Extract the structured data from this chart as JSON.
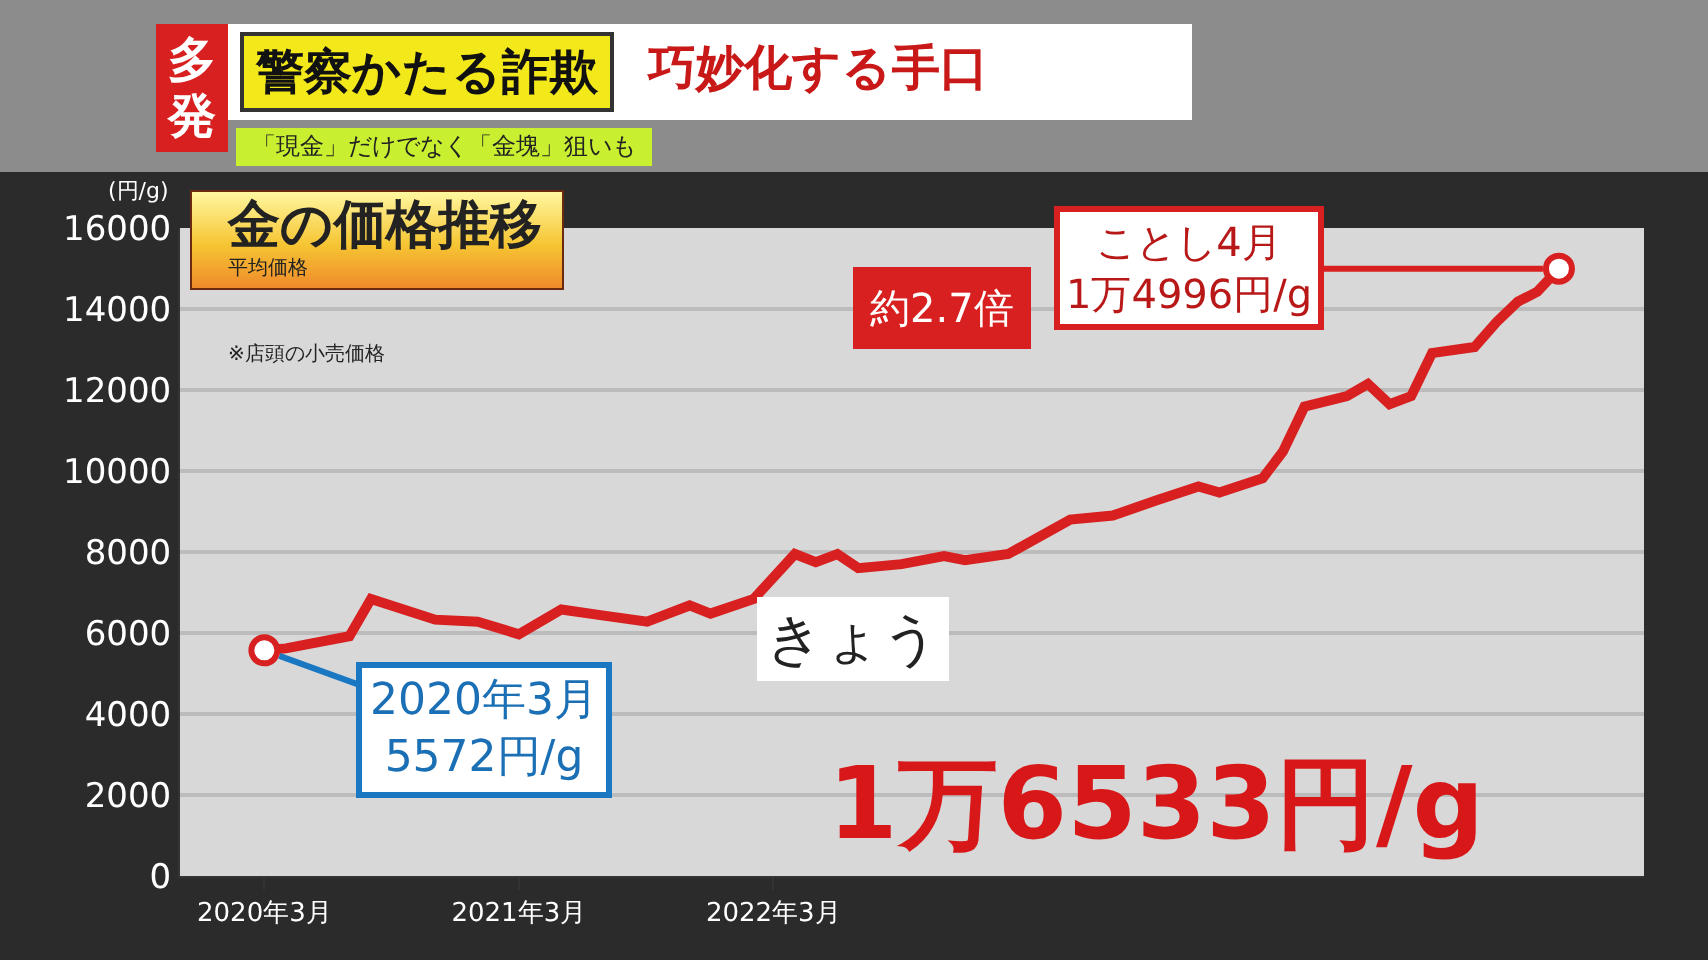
{
  "chart_data": {
    "type": "line",
    "title": "金の価格推移",
    "subtitle": "平均価格",
    "ylabel": "(円/g)",
    "x": [
      "2020-03",
      "2020-04",
      "2020-07",
      "2020-08",
      "2020-11",
      "2021-01",
      "2021-03",
      "2021-05",
      "2021-07",
      "2021-09",
      "2021-11",
      "2021-12",
      "2022-02",
      "2022-04",
      "2022-05",
      "2022-06",
      "2022-07",
      "2022-09",
      "2022-11",
      "2022-12",
      "2023-02",
      "2023-05",
      "2023-07",
      "2023-09",
      "2023-11",
      "2023-12",
      "2024-02",
      "2024-03",
      "2024-04",
      "2024-06",
      "2024-07",
      "2024-08",
      "2024-09",
      "2024-10",
      "2024-12",
      "2025-01",
      "2025-02",
      "2025-03",
      "2025-04"
    ],
    "series": [
      {
        "color": "#d82020",
        "values": [
          5572,
          5620,
          5920,
          6840,
          6330,
          6280,
          5970,
          6580,
          6430,
          6280,
          6680,
          6480,
          6840,
          7950,
          7750,
          7950,
          7600,
          7700,
          7900,
          7800,
          7950,
          8800,
          8900,
          9270,
          9620,
          9470,
          9820,
          10480,
          11590,
          11850,
          12150,
          11650,
          11850,
          12910,
          13060,
          13670,
          14180,
          14430,
          14996
        ]
      },
      {
        "type": "scatter",
        "color": "#d82020",
        "x": [
          "2020-03",
          "2025-04"
        ],
        "values": [
          5572,
          14996
        ],
        "marker": "circle"
      }
    ],
    "xlim": [
      "2019-11",
      "2025-08"
    ],
    "xticks": [
      {
        "value": "2020-03",
        "label": "2020年3月"
      },
      {
        "value": "2021-03",
        "label": "2021年3月"
      },
      {
        "value": "2022-03",
        "label": "2022年3月"
      }
    ],
    "ylim": [
      0,
      16000
    ],
    "yticks": [
      0,
      2000,
      4000,
      6000,
      8000,
      10000,
      12000,
      14000,
      16000
    ],
    "grid": "y",
    "marker": "none",
    "line_style": "solid",
    "annotations": [
      "※店頭の小売価格",
      "約2.7倍",
      {
        "text": "2020年3月\n5572円/g",
        "x": "2020-03",
        "y": 5572
      },
      {
        "text": "ことし4月\n1万4996円/g",
        "x": "2025-04",
        "y": 14996
      },
      "きょう",
      "1万6533円/g",
      "多発",
      "警察かたる詐欺",
      "巧妙化する手口",
      "「現金」だけでなく「金塊」狙いも"
    ]
  }
}
